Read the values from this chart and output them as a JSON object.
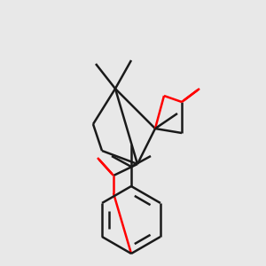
{
  "bg_color": "#e8e8e8",
  "bond_color": "#1a1a1a",
  "oxygen_color": "#ff0000",
  "line_width": 1.8,
  "fig_size": [
    3.0,
    3.0
  ],
  "dpi": 100
}
